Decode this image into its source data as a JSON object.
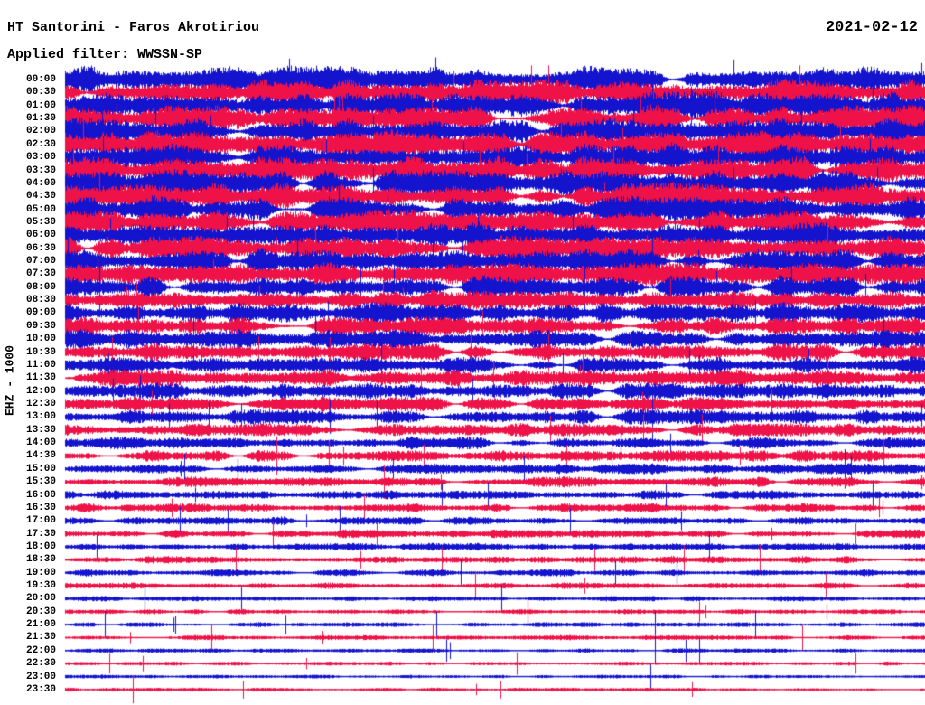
{
  "header": {
    "station_title": "HT Santorini - Faros Akrotiriou",
    "filter_line": "Applied filter: WWSSN-SP",
    "date": "2021-02-12"
  },
  "y_axis": {
    "channel_scale_label": "EHZ - 1000"
  },
  "colors": {
    "background": "#ffffff",
    "text": "#000000",
    "trace_blue": "#1414cf",
    "trace_red": "#ee1248"
  },
  "chart_data": {
    "type": "line",
    "subtype": "helicorder-seismogram",
    "title": "HT Santorini - Faros Akrotiriou",
    "date": "2021-02-12",
    "applied_filter": "WWSSN-SP",
    "channel_scale": "EHZ - 1000",
    "minutes_per_row": 30,
    "time_start": "00:00",
    "time_end": "23:30",
    "grid": false,
    "legend": "none",
    "rows": [
      {
        "time": "00:00",
        "color": "blue",
        "rel_amplitude": 0.93
      },
      {
        "time": "00:30",
        "color": "red",
        "rel_amplitude": 0.93
      },
      {
        "time": "01:00",
        "color": "blue",
        "rel_amplitude": 0.93
      },
      {
        "time": "01:30",
        "color": "red",
        "rel_amplitude": 0.93
      },
      {
        "time": "02:00",
        "color": "blue",
        "rel_amplitude": 0.93
      },
      {
        "time": "02:30",
        "color": "red",
        "rel_amplitude": 1.0
      },
      {
        "time": "03:00",
        "color": "blue",
        "rel_amplitude": 0.95
      },
      {
        "time": "03:30",
        "color": "red",
        "rel_amplitude": 0.93
      },
      {
        "time": "04:00",
        "color": "blue",
        "rel_amplitude": 1.0
      },
      {
        "time": "04:30",
        "color": "red",
        "rel_amplitude": 0.93
      },
      {
        "time": "05:00",
        "color": "blue",
        "rel_amplitude": 0.88
      },
      {
        "time": "05:30",
        "color": "red",
        "rel_amplitude": 0.86
      },
      {
        "time": "06:00",
        "color": "blue",
        "rel_amplitude": 0.86
      },
      {
        "time": "06:30",
        "color": "red",
        "rel_amplitude": 0.86
      },
      {
        "time": "07:00",
        "color": "blue",
        "rel_amplitude": 0.86
      },
      {
        "time": "07:30",
        "color": "red",
        "rel_amplitude": 0.8
      },
      {
        "time": "08:00",
        "color": "blue",
        "rel_amplitude": 0.79
      },
      {
        "time": "08:30",
        "color": "red",
        "rel_amplitude": 0.72
      },
      {
        "time": "09:00",
        "color": "blue",
        "rel_amplitude": 0.71
      },
      {
        "time": "09:30",
        "color": "red",
        "rel_amplitude": 0.65
      },
      {
        "time": "10:00",
        "color": "blue",
        "rel_amplitude": 0.64
      },
      {
        "time": "10:30",
        "color": "red",
        "rel_amplitude": 0.61
      },
      {
        "time": "11:00",
        "color": "blue",
        "rel_amplitude": 0.58
      },
      {
        "time": "11:30",
        "color": "red",
        "rel_amplitude": 0.57
      },
      {
        "time": "12:00",
        "color": "blue",
        "rel_amplitude": 0.54
      },
      {
        "time": "12:30",
        "color": "red",
        "rel_amplitude": 0.51
      },
      {
        "time": "13:00",
        "color": "blue",
        "rel_amplitude": 0.5
      },
      {
        "time": "13:30",
        "color": "red",
        "rel_amplitude": 0.46
      },
      {
        "time": "14:00",
        "color": "blue",
        "rel_amplitude": 0.43
      },
      {
        "time": "14:30",
        "color": "red",
        "rel_amplitude": 0.4
      },
      {
        "time": "15:00",
        "color": "blue",
        "rel_amplitude": 0.36
      },
      {
        "time": "15:30",
        "color": "red",
        "rel_amplitude": 0.36
      },
      {
        "time": "16:00",
        "color": "blue",
        "rel_amplitude": 0.33
      },
      {
        "time": "16:30",
        "color": "red",
        "rel_amplitude": 0.32
      },
      {
        "time": "17:00",
        "color": "blue",
        "rel_amplitude": 0.29
      },
      {
        "time": "17:30",
        "color": "red",
        "rel_amplitude": 0.29
      },
      {
        "time": "18:00",
        "color": "blue",
        "rel_amplitude": 0.26
      },
      {
        "time": "18:30",
        "color": "red",
        "rel_amplitude": 0.25
      },
      {
        "time": "19:00",
        "color": "blue",
        "rel_amplitude": 0.25
      },
      {
        "time": "19:30",
        "color": "red",
        "rel_amplitude": 0.21
      },
      {
        "time": "20:00",
        "color": "blue",
        "rel_amplitude": 0.18
      },
      {
        "time": "20:30",
        "color": "red",
        "rel_amplitude": 0.18
      },
      {
        "time": "21:00",
        "color": "blue",
        "rel_amplitude": 0.18
      },
      {
        "time": "21:30",
        "color": "red",
        "rel_amplitude": 0.18
      },
      {
        "time": "22:00",
        "color": "blue",
        "rel_amplitude": 0.15
      },
      {
        "time": "22:30",
        "color": "red",
        "rel_amplitude": 0.14
      },
      {
        "time": "23:00",
        "color": "blue",
        "rel_amplitude": 0.13
      },
      {
        "time": "23:30",
        "color": "red",
        "rel_amplitude": 0.13
      }
    ]
  }
}
